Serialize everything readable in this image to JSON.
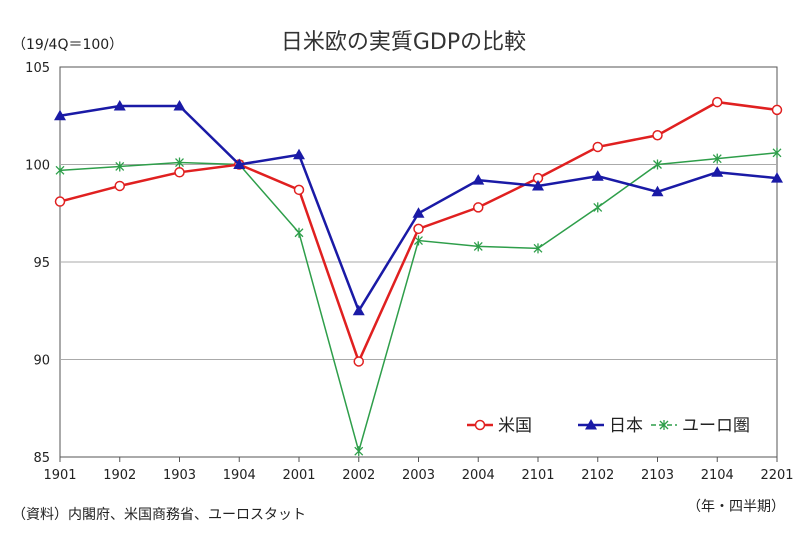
{
  "chart_data": {
    "type": "line",
    "title": "日米欧の実質GDPの比較",
    "unit_label": "（19/4Q＝100）",
    "x_unit_label": "（年・四半期）",
    "source": "（資料）内閣府、米国商務省、ユーロスタット",
    "categories": [
      "1901",
      "1902",
      "1903",
      "1904",
      "2001",
      "2002",
      "2003",
      "2004",
      "2101",
      "2102",
      "2103",
      "2104",
      "2201"
    ],
    "ylim": [
      85,
      105
    ],
    "yticks": [
      85,
      90,
      95,
      100,
      105
    ],
    "grid": true,
    "legend_position": "bottom-right",
    "series": [
      {
        "name": "米国",
        "color": "#e02020",
        "marker": "circle-open",
        "values": [
          98.1,
          98.9,
          99.6,
          100,
          98.7,
          89.9,
          96.7,
          97.8,
          99.3,
          100.9,
          101.5,
          103.2,
          102.8
        ]
      },
      {
        "name": "日本",
        "color": "#1a1aa6",
        "marker": "triangle",
        "values": [
          102.5,
          103.0,
          103.0,
          100,
          100.5,
          92.5,
          97.5,
          99.2,
          98.9,
          99.4,
          98.6,
          99.6,
          99.3
        ]
      },
      {
        "name": "ユーロ圏",
        "color": "#2e9e4a",
        "marker": "x",
        "dashed": true,
        "values": [
          99.7,
          99.9,
          100.1,
          100,
          96.5,
          85.3,
          96.1,
          95.8,
          95.7,
          97.8,
          100.0,
          100.3,
          100.6
        ]
      }
    ]
  }
}
